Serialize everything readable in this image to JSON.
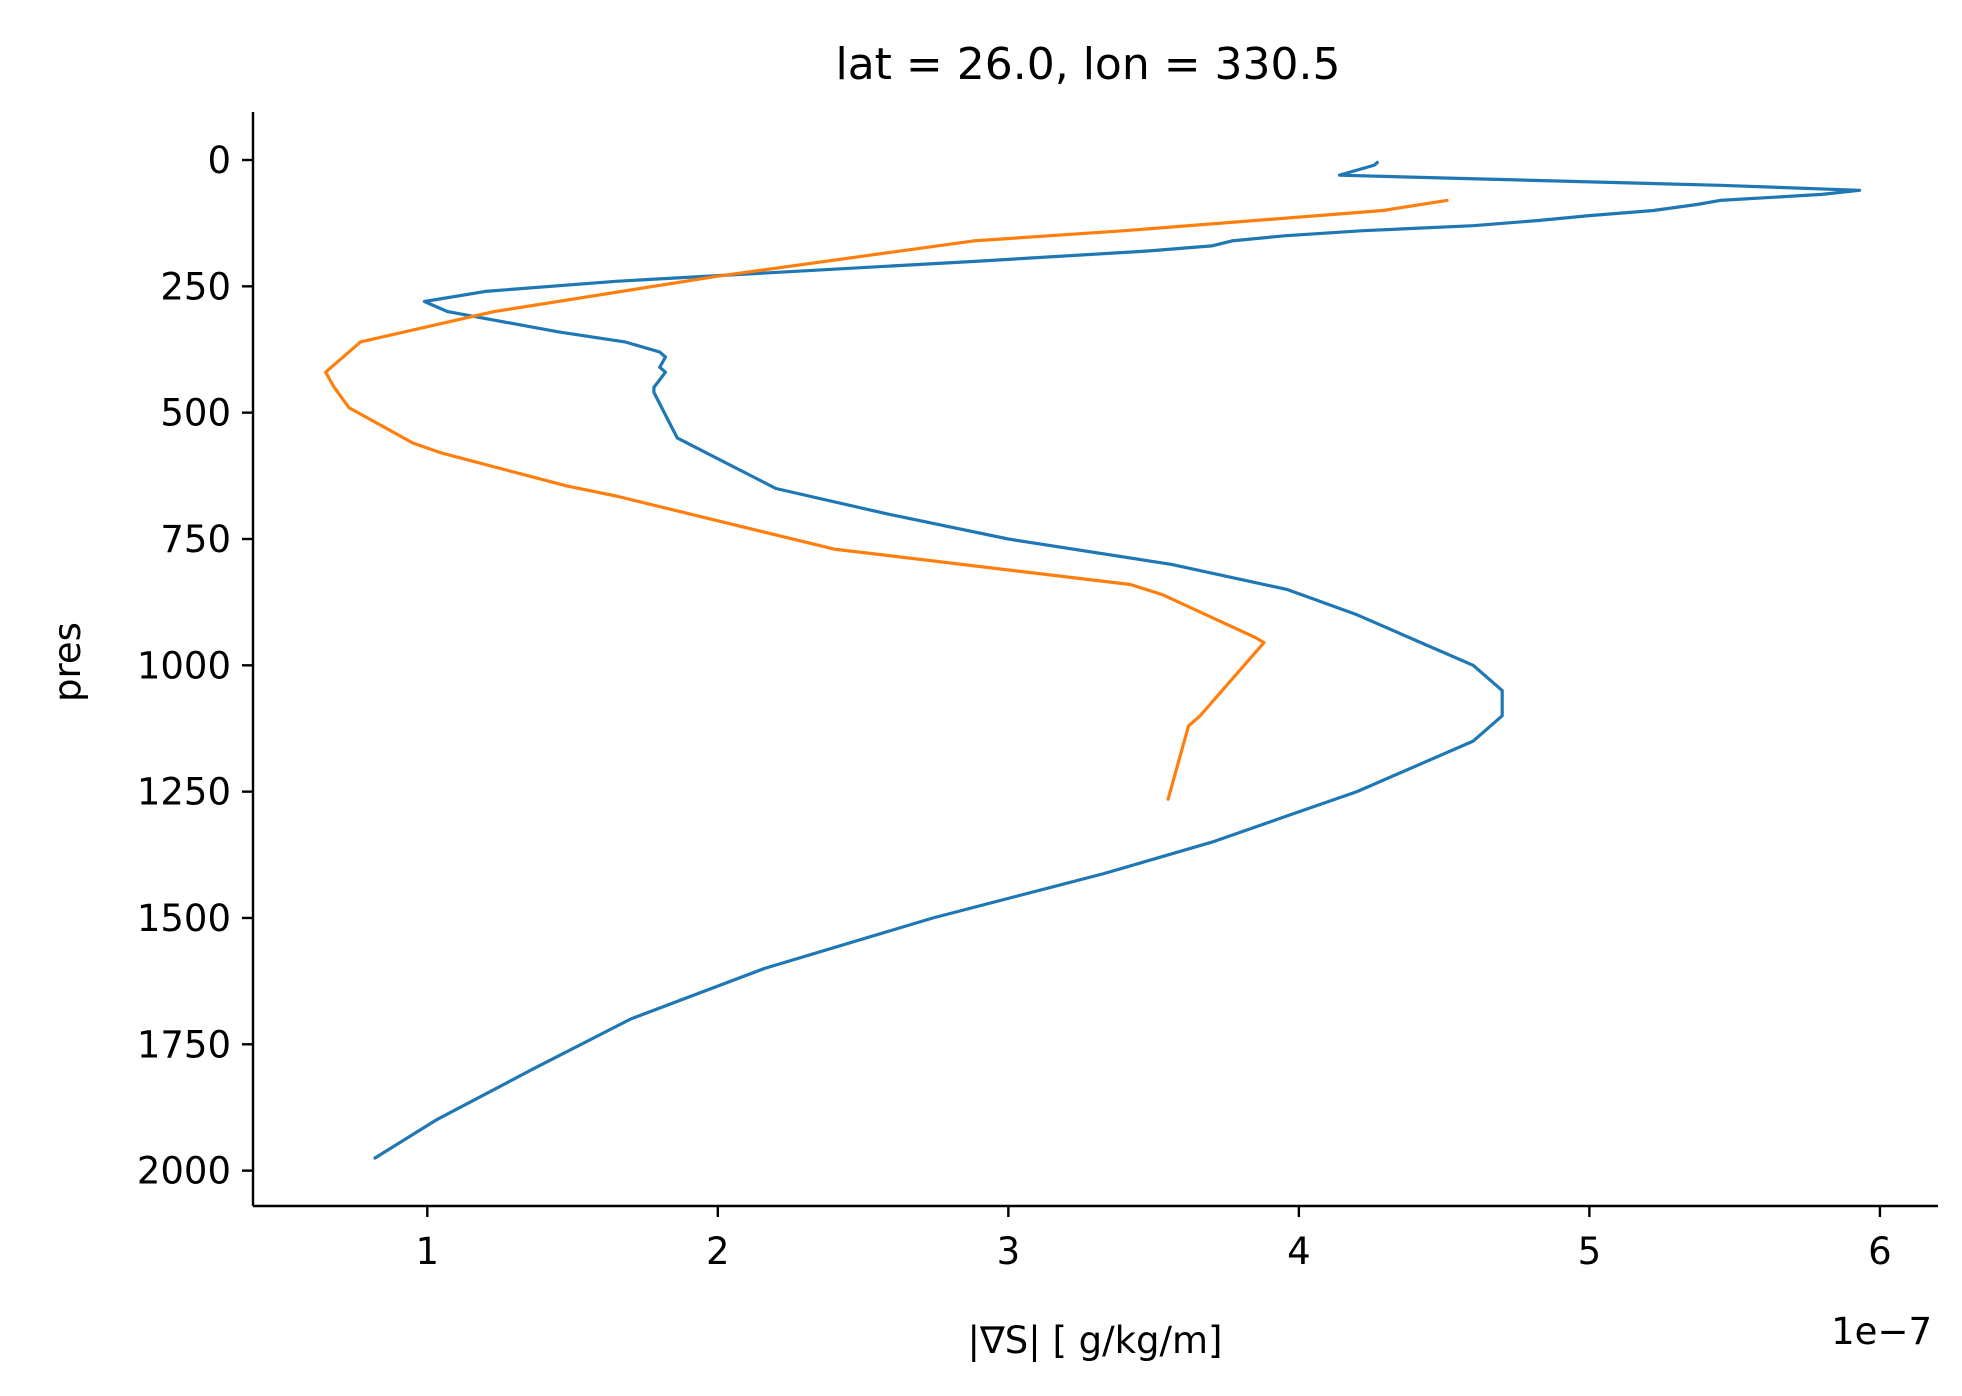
{
  "chart_data": {
    "type": "line",
    "title": "lat = 26.0, lon = 330.5",
    "xlabel": "|∇S| [ g/kg/m]",
    "ylabel": "pres",
    "x_offset_label": "1e−7",
    "xlim": [
      0.4,
      6.2
    ],
    "ylim": [
      2070,
      -95
    ],
    "y_inverted": true,
    "x_ticks": [
      "1",
      "2",
      "3",
      "4",
      "5",
      "6"
    ],
    "x_tick_values": [
      1,
      2,
      3,
      4,
      5,
      6
    ],
    "y_ticks": [
      "0",
      "250",
      "500",
      "750",
      "1000",
      "1250",
      "1500",
      "1750",
      "2000"
    ],
    "y_tick_values": [
      0,
      250,
      500,
      750,
      1000,
      1250,
      1500,
      1750,
      2000
    ],
    "grid": false,
    "x_unit_multiplier": 1e-07,
    "series": [
      {
        "color": "#1f77b4",
        "x": [
          4.27,
          4.26,
          4.14,
          5.45,
          5.93,
          5.8,
          5.45,
          5.37,
          5.22,
          5.0,
          4.82,
          4.6,
          4.22,
          3.95,
          3.77,
          3.7,
          3.48,
          2.9,
          1.65,
          1.2,
          0.99,
          1.07,
          1.45,
          1.68,
          1.8,
          1.82,
          1.8,
          1.82,
          1.78,
          1.78,
          1.86,
          2.2,
          2.58,
          3.0,
          3.56,
          3.96,
          4.2,
          4.4,
          4.6,
          4.7,
          4.7,
          4.6,
          4.2,
          3.95,
          3.7,
          3.33,
          2.74,
          2.16,
          1.7,
          1.36,
          1.03,
          0.82
        ],
        "y": [
          5,
          10,
          30,
          50,
          60,
          68,
          80,
          88,
          100,
          110,
          120,
          130,
          140,
          150,
          160,
          170,
          180,
          200,
          240,
          260,
          280,
          300,
          340,
          360,
          380,
          390,
          410,
          420,
          450,
          460,
          550,
          650,
          700,
          750,
          800,
          850,
          900,
          950,
          1000,
          1050,
          1100,
          1150,
          1250,
          1300,
          1350,
          1412,
          1500,
          1600,
          1700,
          1800,
          1900,
          1975
        ]
      },
      {
        "color": "#ff7f0e",
        "x": [
          4.51,
          4.29,
          3.4,
          2.88,
          2.0,
          1.23,
          0.77,
          0.65,
          0.68,
          0.73,
          0.95,
          1.05,
          1.48,
          1.65,
          2.4,
          3.42,
          3.53,
          3.85,
          3.88,
          3.66,
          3.62,
          3.55
        ],
        "y": [
          80,
          100,
          140,
          160,
          230,
          300,
          360,
          420,
          450,
          490,
          560,
          580,
          645,
          665,
          770,
          840,
          860,
          945,
          955,
          1100,
          1120,
          1265
        ]
      }
    ]
  }
}
